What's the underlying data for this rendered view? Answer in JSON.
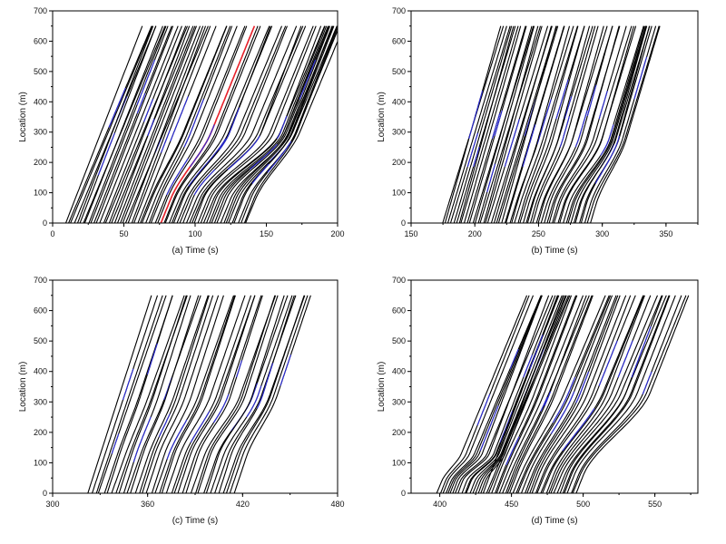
{
  "chart_data": [
    {
      "type": "line",
      "panel_label": "(a)",
      "xlabel": "Time (s)",
      "ylabel": "Location (m)",
      "xlim": [
        0,
        200
      ],
      "ylim": [
        0,
        700
      ],
      "xticks": [
        "0",
        "50",
        "100",
        "150",
        "200"
      ],
      "yticks": [
        "0",
        "100",
        "200",
        "300",
        "400",
        "500",
        "600",
        "700"
      ],
      "n_trajectories": 64,
      "first_entry_time": 9,
      "last_entry_time": 136,
      "trajectory_end_location": 650,
      "free_flow_travel_time": 55,
      "queue_segments": [
        {
          "loc_top": 300,
          "loc_bottom": 80,
          "t_start": 75,
          "t_end": 140,
          "delay": 28
        }
      ],
      "highlighted_vehicle_entry_time": 75,
      "colors": {
        "trajectory": "#000000",
        "highlight_trajectory": "#e8202a",
        "partial_segments": "#2a2ad8"
      }
    },
    {
      "type": "line",
      "panel_label": "(b)",
      "xlabel": "Time (s)",
      "ylabel": "Location (m)",
      "xlim": [
        150,
        375
      ],
      "ylim": [
        0,
        700
      ],
      "xticks": [
        "150",
        "200",
        "250",
        "300",
        "350"
      ],
      "yticks": [
        "0",
        "100",
        "200",
        "300",
        "400",
        "500",
        "600",
        "700"
      ],
      "n_trajectories": 56,
      "first_entry_time": 175,
      "last_entry_time": 290,
      "trajectory_end_location": 650,
      "free_flow_travel_time": 45,
      "queue_segments": [
        {
          "loc_top": 280,
          "loc_bottom": 60,
          "t_start": 240,
          "t_end": 300,
          "delay": 16
        }
      ],
      "colors": {
        "trajectory": "#000000",
        "partial_segments": "#2a2ad8"
      }
    },
    {
      "type": "line",
      "panel_label": "(c)",
      "xlabel": "Time (s)",
      "ylabel": "Location (m)",
      "xlim": [
        300,
        480
      ],
      "ylim": [
        0,
        700
      ],
      "xticks": [
        "300",
        "360",
        "420",
        "480"
      ],
      "yticks": [
        "0",
        "100",
        "200",
        "300",
        "400",
        "500",
        "600",
        "700"
      ],
      "n_trajectories": 38,
      "first_entry_time": 322,
      "last_entry_time": 415,
      "trajectory_end_location": 650,
      "free_flow_travel_time": 42,
      "queue_segments": [
        {
          "loc_top": 320,
          "loc_bottom": 120,
          "t_start": 345,
          "t_end": 440,
          "delay": 10
        }
      ],
      "colors": {
        "trajectory": "#000000",
        "partial_segments": "#2a2ad8"
      }
    },
    {
      "type": "line",
      "panel_label": "(d)",
      "xlabel": "Time (s)",
      "ylabel": "Location (m)",
      "xlim": [
        380,
        580
      ],
      "ylim": [
        0,
        700
      ],
      "xticks": [
        "400",
        "450",
        "500",
        "550"
      ],
      "yticks": [
        "0",
        "100",
        "200",
        "300",
        "400",
        "500",
        "600",
        "700"
      ],
      "n_trajectories": 52,
      "first_entry_time": 398,
      "last_entry_time": 495,
      "trajectory_end_location": 650,
      "free_flow_travel_time": 55,
      "queue_segments": [
        {
          "loc_top": 130,
          "loc_bottom": 40,
          "t_start": 398,
          "t_end": 430,
          "delay": 12
        },
        {
          "loc_top": 330,
          "loc_bottom": 60,
          "t_start": 450,
          "t_end": 540,
          "delay": 24
        }
      ],
      "colors": {
        "trajectory": "#000000",
        "partial_segments": "#2a2ad8"
      }
    }
  ]
}
